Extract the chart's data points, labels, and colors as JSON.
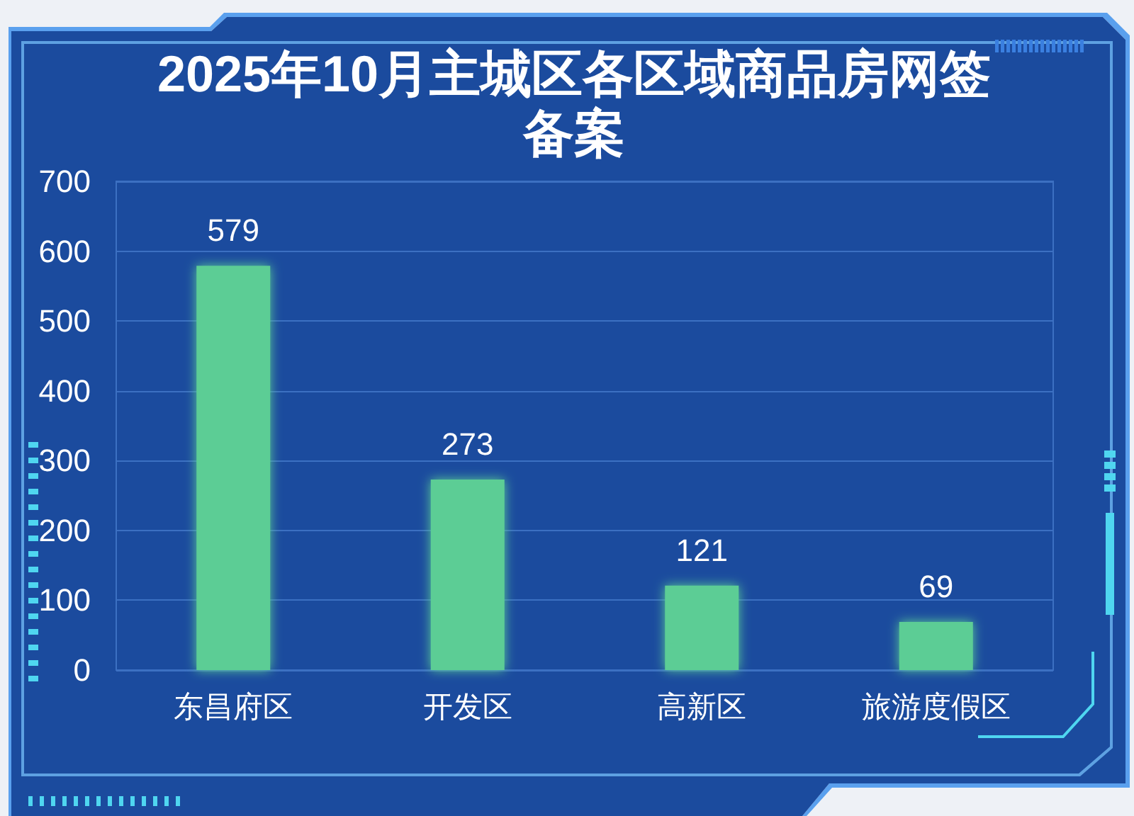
{
  "chart_data": {
    "type": "bar",
    "title": "2025年10月主城区各区域商品房网签备案",
    "categories": [
      "东昌府区",
      "开发区",
      "高新区",
      "旅游度假区"
    ],
    "values": [
      579,
      273,
      121,
      69
    ],
    "color": "#5ccd95",
    "ylim": [
      0,
      700
    ],
    "yticks": [
      0,
      100,
      200,
      300,
      400,
      500,
      600,
      700
    ],
    "grid": "y",
    "data_labels": true
  }
}
